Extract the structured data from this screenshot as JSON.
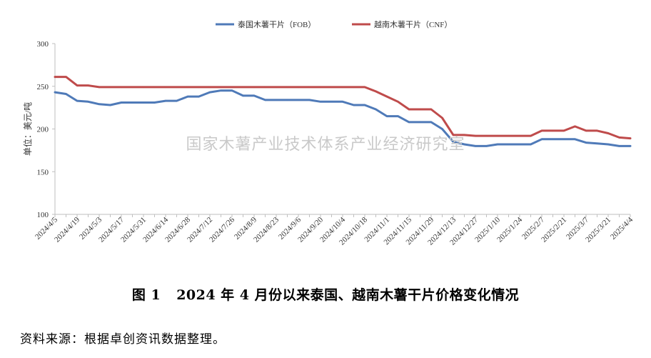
{
  "chart_data": {
    "type": "line",
    "title": "",
    "ylabel": "单位：美元/吨",
    "xlabel": "",
    "ylim": [
      100,
      300
    ],
    "yticks": [
      100,
      150,
      200,
      250,
      300
    ],
    "grid": false,
    "legend_position": "top",
    "x": [
      "2024/4/5",
      "2024/4/12",
      "2024/4/19",
      "2024/4/26",
      "2024/5/3",
      "2024/5/10",
      "2024/5/17",
      "2024/5/24",
      "2024/5/31",
      "2024/6/7",
      "2024/6/14",
      "2024/6/21",
      "2024/6/28",
      "2024/7/5",
      "2024/7/12",
      "2024/7/19",
      "2024/7/26",
      "2024/8/2",
      "2024/8/9",
      "2024/8/16",
      "2024/8/23",
      "2024/8/30",
      "2024/9/6",
      "2024/9/13",
      "2024/9/20",
      "2024/9/27",
      "2024/10/4",
      "2024/10/11",
      "2024/10/18",
      "2024/10/25",
      "2024/11/1",
      "2024/11/8",
      "2024/11/15",
      "2024/11/22",
      "2024/11/29",
      "2024/12/6",
      "2024/12/13",
      "2024/12/20",
      "2024/12/27",
      "2025/1/3",
      "2025/1/10",
      "2025/1/17",
      "2025/1/24",
      "2025/1/31",
      "2025/2/7",
      "2025/2/14",
      "2025/2/21",
      "2025/2/28",
      "2025/3/7",
      "2025/3/14",
      "2025/3/21",
      "2025/3/28",
      "2025/4/4"
    ],
    "xtick_labels": [
      "2024/4/5",
      "2024/4/19",
      "2024/5/3",
      "2024/5/17",
      "2024/5/31",
      "2024/6/14",
      "2024/6/28",
      "2024/7/12",
      "2024/7/26",
      "2024/8/9",
      "2024/8/23",
      "2024/9/6",
      "2024/9/20",
      "2024/10/4",
      "2024/10/18",
      "2024/11/1",
      "2024/11/15",
      "2024/11/29",
      "2024/12/13",
      "2024/12/27",
      "2025/1/10",
      "2025/1/24",
      "2025/2/7",
      "2025/2/21",
      "2025/3/7",
      "2025/3/21",
      "2025/4/4"
    ],
    "series": [
      {
        "name": "泰国木薯干片（FOB）",
        "color": "#4f7ab8",
        "values": [
          243,
          241,
          233,
          232,
          229,
          228,
          231,
          231,
          231,
          231,
          233,
          233,
          238,
          238,
          243,
          245,
          245,
          239,
          239,
          234,
          234,
          234,
          234,
          234,
          232,
          232,
          232,
          228,
          228,
          223,
          215,
          215,
          208,
          208,
          208,
          200,
          185,
          182,
          180,
          180,
          182,
          182,
          182,
          182,
          188,
          188,
          188,
          188,
          184,
          183,
          182,
          180,
          180
        ]
      },
      {
        "name": "越南木薯干片（CNF）",
        "color": "#bf4b4b",
        "values": [
          261,
          261,
          251,
          251,
          249,
          249,
          249,
          249,
          249,
          249,
          249,
          249,
          249,
          249,
          249,
          249,
          249,
          249,
          249,
          249,
          249,
          249,
          249,
          249,
          249,
          249,
          249,
          249,
          249,
          244,
          238,
          232,
          223,
          223,
          223,
          213,
          193,
          193,
          192,
          192,
          192,
          192,
          192,
          192,
          198,
          198,
          198,
          203,
          198,
          198,
          195,
          190,
          189
        ]
      }
    ]
  },
  "caption": {
    "figure_number": "图 1",
    "text": "2024 年 4 月份以来泰国、越南木薯干片价格变化情况"
  },
  "source_note": "资料来源：根据卓创资讯数据整理。",
  "watermark": "国家木薯产业技术体系产业经济研究室"
}
